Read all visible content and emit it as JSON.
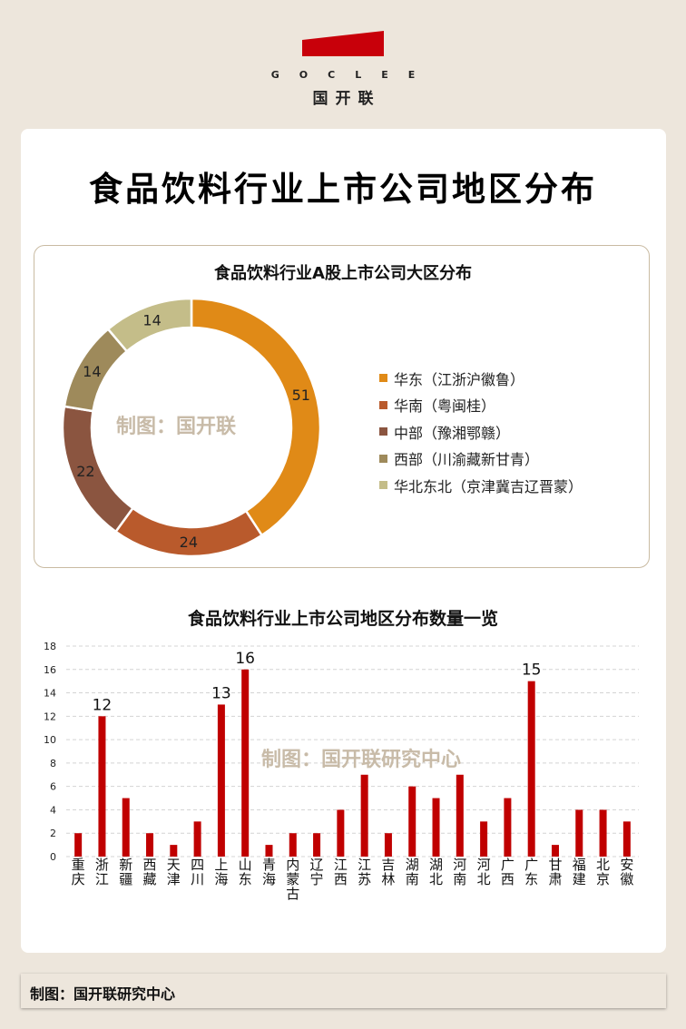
{
  "brand": {
    "en": "GOCLEE",
    "cn": "国开联",
    "color": "#c8000a"
  },
  "title": "食品饮料行业上市公司地区分布",
  "donut": {
    "title": "食品饮料行业A股上市公司大区分布",
    "watermark": "制图：国开联"
  },
  "bars": {
    "title": "食品饮料行业上市公司地区分布数量一览",
    "watermark": "制图：国开联研究中心"
  },
  "footer": {
    "text": "制图：国开联研究中心"
  },
  "chart_data": [
    {
      "type": "pie",
      "donut": true,
      "title": "食品饮料行业A股上市公司大区分布",
      "categories": [
        "华东（江浙沪徽鲁）",
        "华南（粤闽桂）",
        "中部（豫湘鄂赣）",
        "西部（川渝藏新甘青）",
        "华北东北（京津冀吉辽晋蒙）"
      ],
      "values": [
        51,
        24,
        22,
        14,
        14
      ],
      "colors": [
        "#e08a17",
        "#b95a2c",
        "#8b5540",
        "#9e8a5b",
        "#c4bd89"
      ],
      "legend": "right"
    },
    {
      "type": "bar",
      "title": "食品饮料行业上市公司地区分布数量一览",
      "categories": [
        "重庆",
        "浙江",
        "新疆",
        "西藏",
        "天津",
        "四川",
        "上海",
        "山东",
        "青海",
        "内蒙古",
        "辽宁",
        "江西",
        "江苏",
        "吉林",
        "湖南",
        "湖北",
        "河南",
        "河北",
        "广西",
        "广东",
        "甘肃",
        "福建",
        "北京",
        "安徽"
      ],
      "values": [
        2,
        12,
        5,
        2,
        1,
        3,
        13,
        16,
        1,
        2,
        2,
        4,
        7,
        2,
        6,
        5,
        7,
        3,
        5,
        15,
        1,
        4,
        4,
        3
      ],
      "data_labels": {
        "浙江": "12",
        "上海": "13",
        "山东": "16",
        "广东": "15"
      },
      "ylim": [
        0,
        18
      ],
      "yticks": [
        "0",
        "2",
        "4",
        "6",
        "8",
        "10",
        "12",
        "14",
        "16",
        "18"
      ],
      "grid": true,
      "color": "#c00000"
    }
  ]
}
